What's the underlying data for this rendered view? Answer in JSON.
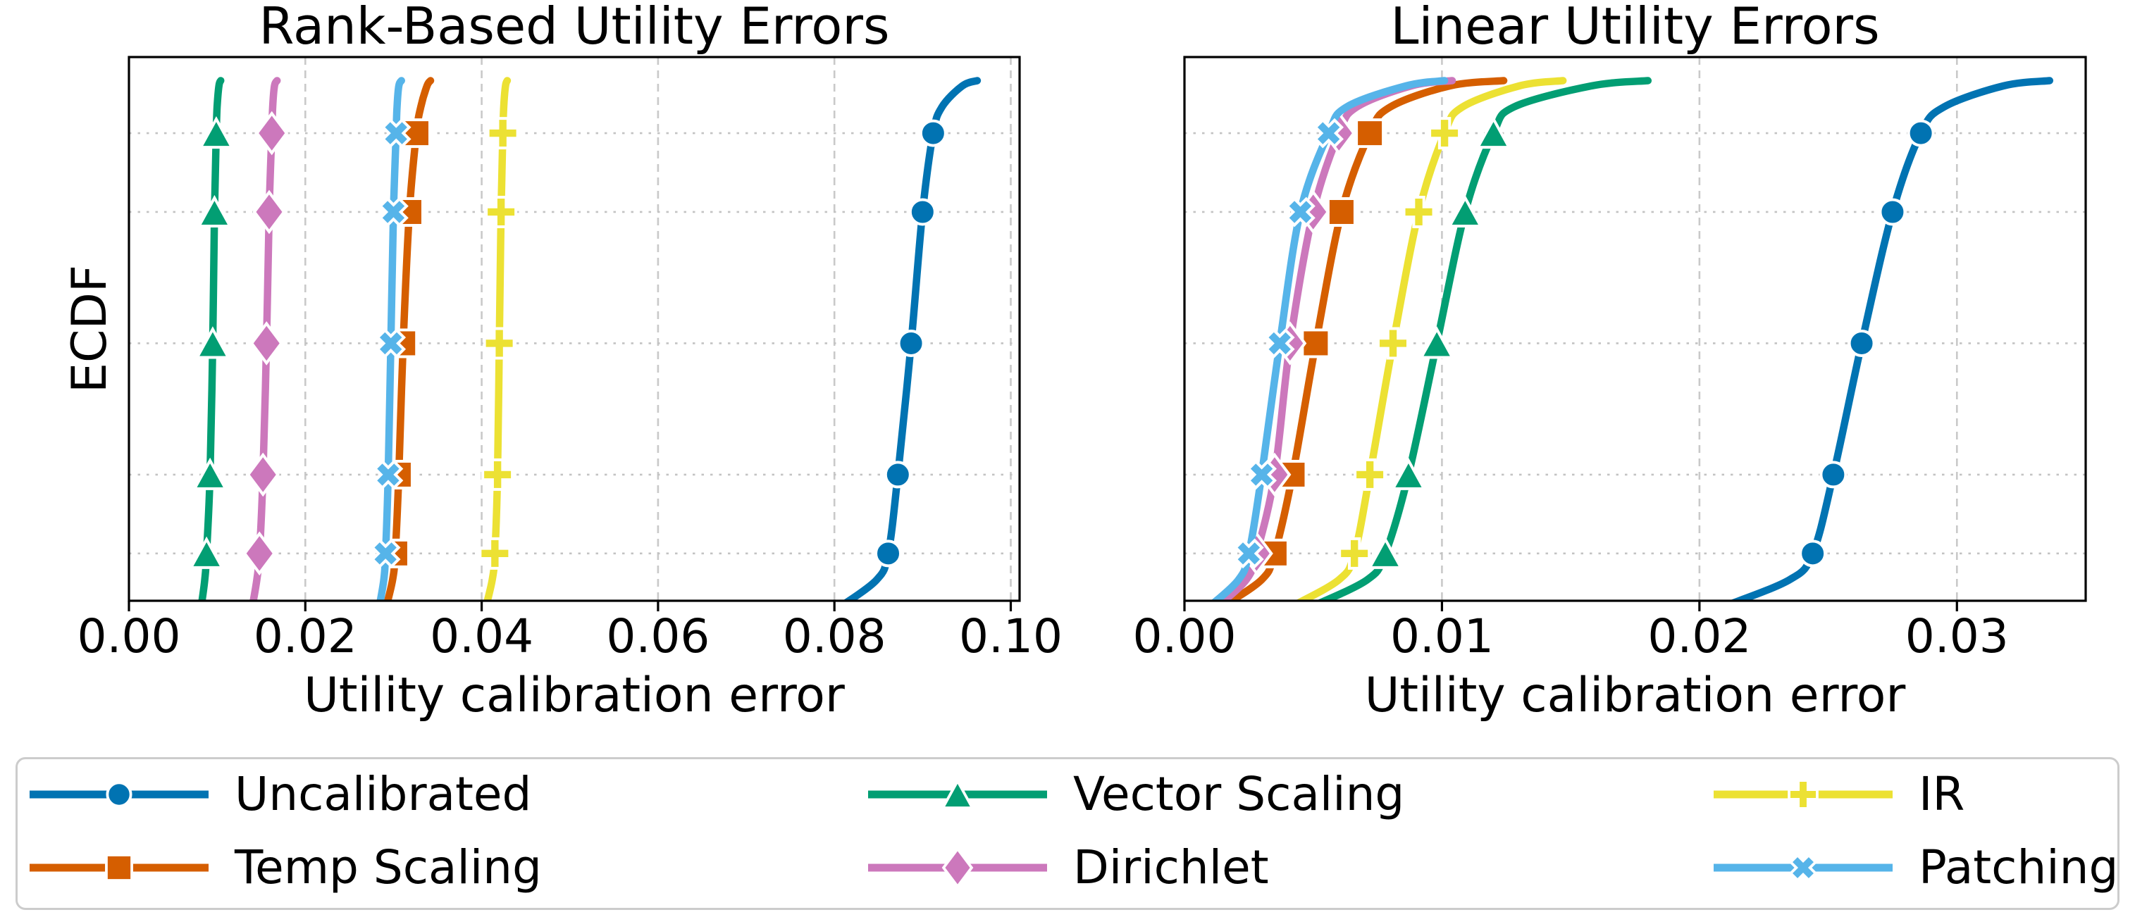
{
  "figure": {
    "background": "#ffffff",
    "frame_color": "#000000",
    "grid_x_color": "#c9c9c9",
    "grid_y_color": "#c3c3c3"
  },
  "chart_data": [
    {
      "type": "line",
      "subtype": "ecdf",
      "title": "Rank-Based Utility Errors",
      "xlabel": "Utility calibration error",
      "ylabel": "ECDF",
      "xlim": [
        0,
        0.101
      ],
      "ylim": [
        -0.01,
        1.045
      ],
      "xticks": [
        0.0,
        0.02,
        0.04,
        0.06,
        0.08,
        0.1
      ],
      "xtick_labels": [
        "0.00",
        "0.02",
        "0.04",
        "0.06",
        "0.08",
        "0.10"
      ],
      "grid": {
        "vertical": "dashed",
        "horizontal": "dotted"
      },
      "y_gridlines_at_ecdf": [
        0.1,
        0.25,
        0.5,
        0.75,
        0.9
      ],
      "levels": [
        0,
        0.05,
        0.1,
        0.25,
        0.5,
        0.75,
        0.9,
        0.95,
        0.99,
        1.0
      ],
      "marker_levels": [
        0.1,
        0.25,
        0.5,
        0.75,
        0.9
      ],
      "series": [
        {
          "name": "Uncalibrated",
          "color": "#0173b2",
          "marker": "circle",
          "x_at_levels": [
            0.0808,
            0.0848,
            0.0861,
            0.0872,
            0.0887,
            0.09,
            0.0912,
            0.0922,
            0.0945,
            0.0962
          ]
        },
        {
          "name": "Temp Scaling",
          "color": "#d55e00",
          "marker": "square",
          "x_at_levels": [
            0.0292,
            0.0299,
            0.0302,
            0.0306,
            0.0311,
            0.0318,
            0.0326,
            0.0331,
            0.0338,
            0.0342
          ]
        },
        {
          "name": "Vector Scaling",
          "color": "#029e73",
          "marker": "triangle-up",
          "x_at_levels": [
            0.0082,
            0.0086,
            0.0088,
            0.0092,
            0.0095,
            0.0097,
            0.0099,
            0.01,
            0.0102,
            0.0104
          ]
        },
        {
          "name": "Dirichlet",
          "color": "#cc78bc",
          "marker": "diamond",
          "x_at_levels": [
            0.014,
            0.0145,
            0.0148,
            0.0152,
            0.0156,
            0.0159,
            0.0162,
            0.0163,
            0.0165,
            0.0168
          ]
        },
        {
          "name": "IR",
          "color": "#ece133",
          "marker": "plus",
          "x_at_levels": [
            0.0405,
            0.0412,
            0.0415,
            0.0418,
            0.042,
            0.0422,
            0.0424,
            0.0425,
            0.0427,
            0.0429
          ]
        },
        {
          "name": "Patching",
          "color": "#56b4e9",
          "marker": "x",
          "x_at_levels": [
            0.0284,
            0.0289,
            0.0291,
            0.0294,
            0.0297,
            0.03,
            0.0303,
            0.0304,
            0.0306,
            0.0309
          ]
        }
      ]
    },
    {
      "type": "line",
      "subtype": "ecdf",
      "title": "Linear Utility Errors",
      "xlabel": "Utility calibration error",
      "ylabel": "",
      "xlim": [
        0,
        0.035
      ],
      "ylim": [
        -0.01,
        1.045
      ],
      "xticks": [
        0.0,
        0.01,
        0.02,
        0.03
      ],
      "xtick_labels": [
        "0.00",
        "0.01",
        "0.02",
        "0.03"
      ],
      "grid": {
        "vertical": "dashed",
        "horizontal": "dotted"
      },
      "y_gridlines_at_ecdf": [
        0.1,
        0.25,
        0.5,
        0.75,
        0.9
      ],
      "levels": [
        0,
        0.05,
        0.1,
        0.25,
        0.5,
        0.75,
        0.9,
        0.95,
        0.99,
        1.0
      ],
      "marker_levels": [
        0.1,
        0.25,
        0.5,
        0.75,
        0.9
      ],
      "series": [
        {
          "name": "Uncalibrated",
          "color": "#0173b2",
          "marker": "circle",
          "x_at_levels": [
            0.021,
            0.0235,
            0.0244,
            0.0252,
            0.0263,
            0.0275,
            0.0286,
            0.0295,
            0.0318,
            0.0336
          ]
        },
        {
          "name": "Temp Scaling",
          "color": "#d55e00",
          "marker": "square",
          "x_at_levels": [
            0.0015,
            0.003,
            0.0035,
            0.0042,
            0.0051,
            0.0061,
            0.0072,
            0.008,
            0.0103,
            0.0124
          ]
        },
        {
          "name": "Vector Scaling",
          "color": "#029e73",
          "marker": "triangle-up",
          "x_at_levels": [
            0.005,
            0.0071,
            0.0078,
            0.0087,
            0.0098,
            0.0109,
            0.012,
            0.0128,
            0.0158,
            0.018
          ]
        },
        {
          "name": "Dirichlet",
          "color": "#cc78bc",
          "marker": "diamond",
          "x_at_levels": [
            0.0013,
            0.0024,
            0.0028,
            0.0035,
            0.0041,
            0.005,
            0.006,
            0.0067,
            0.0088,
            0.0104
          ]
        },
        {
          "name": "IR",
          "color": "#ece133",
          "marker": "plus",
          "x_at_levels": [
            0.0042,
            0.006,
            0.0066,
            0.0072,
            0.0081,
            0.0091,
            0.0101,
            0.0108,
            0.013,
            0.0147
          ]
        },
        {
          "name": "Patching",
          "color": "#56b4e9",
          "marker": "x",
          "x_at_levels": [
            0.001,
            0.0021,
            0.0025,
            0.003,
            0.0037,
            0.0045,
            0.0056,
            0.0063,
            0.0086,
            0.0101
          ]
        }
      ]
    }
  ],
  "legend": {
    "entries": [
      {
        "label": "Uncalibrated",
        "color": "#0173b2",
        "marker": "circle"
      },
      {
        "label": "Temp Scaling",
        "color": "#d55e00",
        "marker": "square"
      },
      {
        "label": "Vector Scaling",
        "color": "#029e73",
        "marker": "triangle-up"
      },
      {
        "label": "Dirichlet",
        "color": "#cc78bc",
        "marker": "diamond"
      },
      {
        "label": "IR",
        "color": "#ece133",
        "marker": "plus"
      },
      {
        "label": "Patching",
        "color": "#56b4e9",
        "marker": "x"
      }
    ]
  }
}
